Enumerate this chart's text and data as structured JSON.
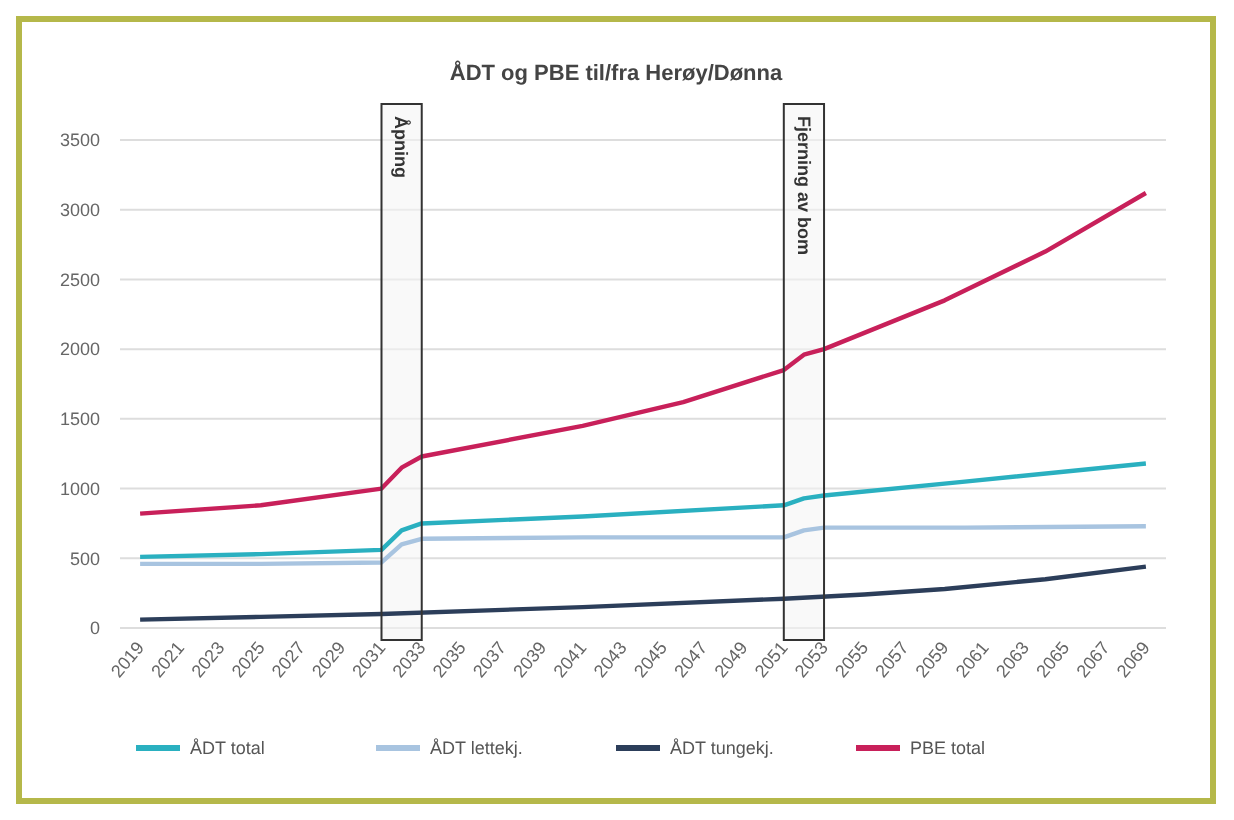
{
  "chart_data": {
    "type": "line",
    "title": "ÅDT og PBE til/fra Herøy/Dønna",
    "xlim": [
      2018,
      2070
    ],
    "xticks": [
      2019,
      2021,
      2023,
      2025,
      2027,
      2029,
      2031,
      2033,
      2035,
      2037,
      2039,
      2041,
      2043,
      2045,
      2047,
      2049,
      2051,
      2053,
      2055,
      2057,
      2059,
      2061,
      2063,
      2065,
      2067,
      2069
    ],
    "ylim": [
      0,
      3500
    ],
    "yticks": [
      0,
      500,
      1000,
      1500,
      2000,
      2500,
      3000,
      3500
    ],
    "grid": "y",
    "legend": "bottom",
    "bands": [
      {
        "axis": "x",
        "from": 2031,
        "to": 2033,
        "label": "Åpning",
        "color": "#f5f5f5"
      },
      {
        "axis": "x",
        "from": 2051,
        "to": 2053,
        "label": "Fjerning av bom",
        "color": "#f5f5f5"
      }
    ],
    "series": [
      {
        "name": "ÅDT total",
        "color": "#2ab0c0",
        "x": [
          2019,
          2025,
          2031,
          2032,
          2033,
          2041,
          2051,
          2052,
          2053,
          2060,
          2069
        ],
        "values": [
          510,
          530,
          560,
          700,
          750,
          800,
          880,
          930,
          950,
          1050,
          1180
        ]
      },
      {
        "name": "ÅDT lettekj.",
        "color": "#a8c4e0",
        "x": [
          2019,
          2025,
          2031,
          2032,
          2033,
          2041,
          2051,
          2052,
          2053,
          2060,
          2069
        ],
        "values": [
          460,
          460,
          470,
          600,
          640,
          650,
          650,
          700,
          720,
          720,
          730
        ]
      },
      {
        "name": "ÅDT tungekj.",
        "color": "#2c3e5a",
        "x": [
          2019,
          2025,
          2031,
          2041,
          2051,
          2055,
          2059,
          2064,
          2069
        ],
        "values": [
          60,
          80,
          100,
          150,
          210,
          240,
          280,
          350,
          440
        ]
      },
      {
        "name": "PBE total",
        "color": "#c8205a",
        "x": [
          2019,
          2025,
          2031,
          2032,
          2033,
          2041,
          2046,
          2051,
          2052,
          2053,
          2059,
          2064,
          2069
        ],
        "values": [
          820,
          880,
          1000,
          1150,
          1230,
          1450,
          1620,
          1850,
          1960,
          2000,
          2350,
          2700,
          3120
        ]
      }
    ]
  }
}
